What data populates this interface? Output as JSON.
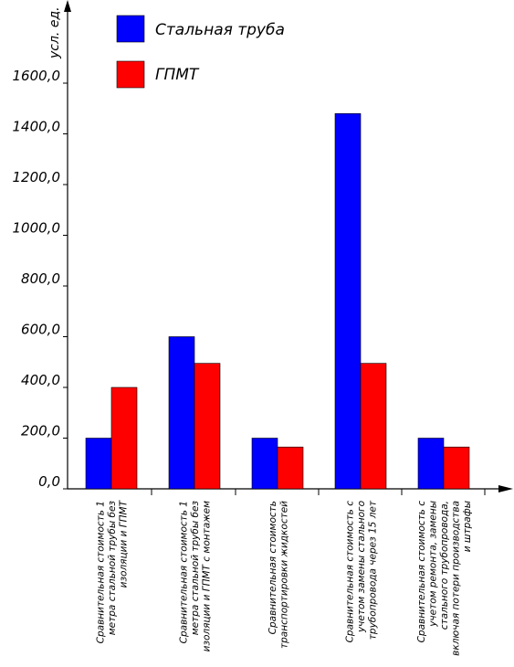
{
  "chart_data": {
    "type": "bar",
    "ylabel": "усл. ед.",
    "ylim": [
      0,
      1600
    ],
    "yticks": [
      "0,0",
      "200,0",
      "400,0",
      "600,0",
      "800,0",
      "1000,0",
      "1200,0",
      "1400,0",
      "1600,0"
    ],
    "categories": [
      [
        "Сравнительная стоимость 1",
        "метра стальной трубы без",
        "изоляции и ГПМТ"
      ],
      [
        "Сравнительная стоимость 1",
        "метра стальной трубы без",
        "изоляции и ГПМТ с монтажем"
      ],
      [
        "Сравнительная стоимость",
        "транспортировки жидкостей"
      ],
      [
        "Сравнительная стоимость с",
        "учетом замены стального",
        "трубопровода через 15 лет"
      ],
      [
        "Сравнительная стоимость с",
        "учетом ремонта, замены",
        "стального трубопровода,",
        "включая потери производства",
        "и штрафы"
      ]
    ],
    "series": [
      {
        "name": "Стальная труба",
        "color": "#0000ff",
        "values": [
          200,
          600,
          200,
          1480,
          200
        ]
      },
      {
        "name": "ГПМТ",
        "color": "#ff0000",
        "values": [
          400,
          495,
          165,
          495,
          165
        ]
      }
    ],
    "legend": "top-left",
    "grid": false
  }
}
